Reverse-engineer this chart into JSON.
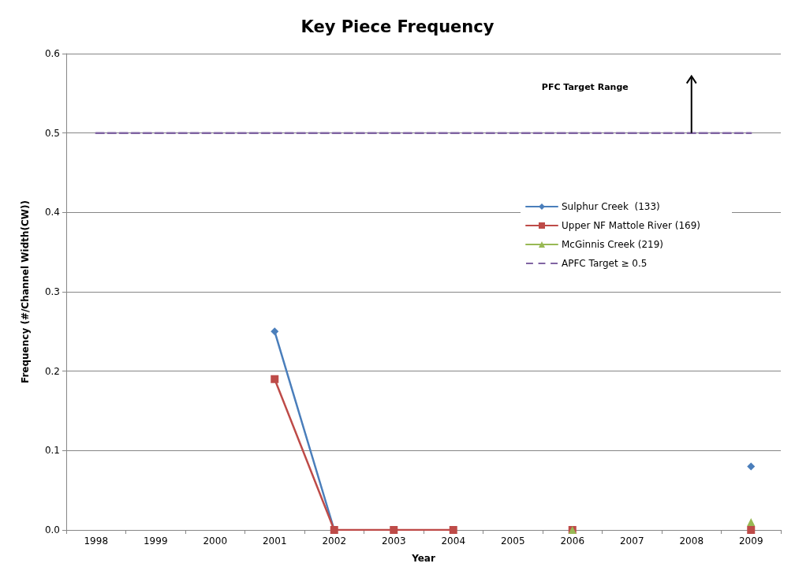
{
  "chart_data": {
    "type": "line",
    "title": "Key Piece Frequency",
    "xlabel": "Year",
    "ylabel": "Frequency (#/Channel Width(CW))",
    "categories": [
      "1998",
      "1999",
      "2000",
      "2001",
      "2002",
      "2003",
      "2004",
      "2005",
      "2006",
      "2007",
      "2008",
      "2009"
    ],
    "series": [
      {
        "name": "Sulphur Creek  (133)",
        "color": "#4a7ebb",
        "marker": "diamond",
        "values": [
          null,
          null,
          null,
          0.25,
          0,
          null,
          null,
          null,
          null,
          null,
          null,
          0.08
        ]
      },
      {
        "name": "Upper NF Mattole River (169)",
        "color": "#be4b48",
        "marker": "square",
        "values": [
          null,
          null,
          null,
          0.19,
          0,
          0,
          0,
          null,
          0,
          null,
          null,
          0
        ]
      },
      {
        "name": "McGinnis Creek (219)",
        "color": "#98b954",
        "marker": "triangle",
        "values": [
          null,
          null,
          null,
          null,
          null,
          null,
          null,
          null,
          0,
          null,
          null,
          0.01
        ]
      },
      {
        "name": "APFC Target ≥ 0.5",
        "color": "#8064a2",
        "marker": "none",
        "line_style": "dashed",
        "values": [
          0.5,
          0.5,
          0.5,
          0.5,
          0.5,
          0.5,
          0.5,
          0.5,
          0.5,
          0.5,
          0.5,
          0.5
        ]
      }
    ],
    "ylim": [
      0,
      0.6
    ],
    "yticks": [
      {
        "value": 0,
        "label": "0.0"
      },
      0.1,
      0.2,
      0.3,
      0.4,
      0.5,
      0.6
    ],
    "grid": "y",
    "legend": "right",
    "line_style": "solid",
    "annotations": [
      "PFC Target Range"
    ]
  }
}
